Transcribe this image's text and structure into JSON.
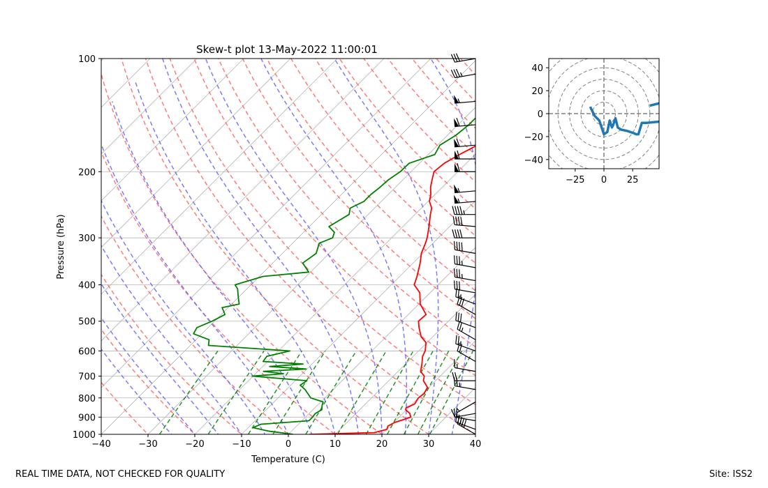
{
  "chart_data": [
    {
      "type": "skew-t",
      "title": "Skew-t plot 13-May-2022 11:00:01",
      "xlabel": "Temperature (C)",
      "ylabel": "Pressure (hPa)",
      "xlim": [
        -40,
        40
      ],
      "ylim": [
        1000,
        100
      ],
      "y_scale": "log",
      "x_ticks": [
        "−40",
        "−30",
        "−20",
        "−10",
        "0",
        "10",
        "20",
        "30",
        "40"
      ],
      "y_ticks": [
        "100",
        "200",
        "300",
        "400",
        "500",
        "600",
        "700",
        "800",
        "900",
        "1000"
      ],
      "grid": true,
      "colors": {
        "temperature": "#ff0000",
        "dewpoint": "#008000",
        "dry_adiabats": "#ff6464",
        "moist_adiabats": "#6464ff",
        "mixing_ratio": "#008000",
        "isotherms": "#b4b4b4",
        "barbs": "#000000"
      },
      "series": [
        {
          "name": "Temperature",
          "pressure_hPa": [
            1000,
            990,
            970,
            950,
            930,
            910,
            900,
            880,
            860,
            850,
            830,
            800,
            780,
            750,
            720,
            700,
            680,
            650,
            620,
            600,
            570,
            550,
            520,
            500,
            480,
            450,
            420,
            400,
            380,
            350,
            330,
            310,
            300,
            280,
            260,
            250,
            240,
            230,
            220,
            210,
            200,
            190,
            185,
            180,
            170,
            160,
            150,
            145,
            140,
            135,
            130,
            125,
            120,
            115,
            110,
            105,
            100
          ],
          "values": [
            4.5,
            18,
            20,
            19.5,
            20.2,
            21.8,
            22.5,
            21.5,
            19.8,
            19.5,
            20.5,
            20,
            20.3,
            19.7,
            17.4,
            16.6,
            14.8,
            13.5,
            12,
            11.4,
            9.8,
            7.5,
            5.1,
            3.6,
            3.8,
            0.3,
            -2.2,
            -5.1,
            -6.3,
            -8.5,
            -10.3,
            -11.6,
            -12.4,
            -14.4,
            -16.7,
            -17.8,
            -19.7,
            -20.9,
            -22.5,
            -23.8,
            -25.1,
            -24.7,
            -24,
            -23.3,
            -21.5,
            -20.9,
            -18.3,
            -17.8,
            -15,
            -15.5,
            -13.2,
            -11.2,
            -10.5,
            -7.2,
            -5.5,
            -2.8,
            -3.3
          ]
        },
        {
          "name": "Dewpoint",
          "pressure_hPa": [
            1000,
            980,
            960,
            940,
            920,
            900,
            880,
            860,
            840,
            820,
            800,
            780,
            760,
            740,
            720,
            700,
            690,
            680,
            670,
            660,
            650,
            640,
            620,
            600,
            580,
            560,
            540,
            520,
            500,
            480,
            460,
            450,
            430,
            410,
            400,
            380,
            370,
            350,
            330,
            310,
            300,
            290,
            280,
            260,
            250,
            240,
            230,
            220,
            210,
            200,
            190,
            180,
            170,
            160,
            150,
            140,
            130,
            120,
            110,
            100
          ],
          "values": [
            1,
            -5,
            -9,
            -8,
            1.5,
            1.5,
            1.3,
            1.9,
            1.1,
            0.5,
            -3,
            -4.5,
            -6,
            -8,
            -7.5,
            -20.2,
            -14,
            -18.8,
            -10.2,
            -18.5,
            -11.9,
            -21,
            -21.3,
            -17.5,
            -36.1,
            -37.2,
            -41.8,
            -42.4,
            -40.5,
            -39.2,
            -41.3,
            -38.4,
            -40.2,
            -42,
            -43.4,
            -39.2,
            -30.4,
            -33.6,
            -32.8,
            -34.3,
            -32.6,
            -33.4,
            -35.8,
            -34.1,
            -35.2,
            -33.7,
            -33.7,
            -33.3,
            -33.1,
            -32.3,
            -32.2,
            -28.6,
            -29.5,
            -28.2,
            -27.7,
            -27.7,
            -26.6,
            -25.6,
            -24.5,
            -23.1
          ]
        }
      ],
      "wind_barbs": [
        {
          "p": 1000,
          "speed_kt": 40,
          "dir_deg": 300
        },
        {
          "p": 970,
          "speed_kt": 25,
          "dir_deg": 290
        },
        {
          "p": 920,
          "speed_kt": 20,
          "dir_deg": 280
        },
        {
          "p": 880,
          "speed_kt": 10,
          "dir_deg": 260
        },
        {
          "p": 820,
          "speed_kt": 5,
          "dir_deg": 240
        },
        {
          "p": 760,
          "speed_kt": 25,
          "dir_deg": 280
        },
        {
          "p": 720,
          "speed_kt": 20,
          "dir_deg": 270
        },
        {
          "p": 680,
          "speed_kt": 15,
          "dir_deg": 280
        },
        {
          "p": 640,
          "speed_kt": 20,
          "dir_deg": 300
        },
        {
          "p": 600,
          "speed_kt": 25,
          "dir_deg": 290
        },
        {
          "p": 560,
          "speed_kt": 25,
          "dir_deg": 300
        },
        {
          "p": 520,
          "speed_kt": 30,
          "dir_deg": 290
        },
        {
          "p": 480,
          "speed_kt": 30,
          "dir_deg": 300
        },
        {
          "p": 450,
          "speed_kt": 25,
          "dir_deg": 290
        },
        {
          "p": 420,
          "speed_kt": 30,
          "dir_deg": 280
        },
        {
          "p": 390,
          "speed_kt": 35,
          "dir_deg": 280
        },
        {
          "p": 360,
          "speed_kt": 35,
          "dir_deg": 280
        },
        {
          "p": 330,
          "speed_kt": 40,
          "dir_deg": 280
        },
        {
          "p": 300,
          "speed_kt": 40,
          "dir_deg": 270
        },
        {
          "p": 280,
          "speed_kt": 40,
          "dir_deg": 275
        },
        {
          "p": 260,
          "speed_kt": 45,
          "dir_deg": 270
        },
        {
          "p": 240,
          "speed_kt": 55,
          "dir_deg": 265
        },
        {
          "p": 225,
          "speed_kt": 55,
          "dir_deg": 265
        },
        {
          "p": 200,
          "speed_kt": 60,
          "dir_deg": 270
        },
        {
          "p": 185,
          "speed_kt": 60,
          "dir_deg": 270
        },
        {
          "p": 170,
          "speed_kt": 60,
          "dir_deg": 265
        },
        {
          "p": 150,
          "speed_kt": 60,
          "dir_deg": 265
        },
        {
          "p": 130,
          "speed_kt": 55,
          "dir_deg": 265
        },
        {
          "p": 110,
          "speed_kt": 35,
          "dir_deg": 260
        },
        {
          "p": 100,
          "speed_kt": 30,
          "dir_deg": 260
        }
      ]
    },
    {
      "type": "hodograph",
      "xlim": [
        -48,
        48
      ],
      "ylim": [
        -48,
        48
      ],
      "x_ticks": [
        "−25",
        "0",
        "25"
      ],
      "y_ticks": [
        "40",
        "20",
        "0",
        "−20",
        "−40"
      ],
      "rings": [
        10,
        20,
        30,
        40,
        50,
        60
      ],
      "colors": {
        "line": "#1f77b4",
        "rings": "#808080"
      },
      "series": [
        {
          "u": [
            48,
            37,
            33,
            30,
            28,
            26,
            20,
            15,
            12,
            10,
            8,
            7,
            5,
            3,
            0,
            -2,
            -4,
            -6,
            -8,
            -10,
            -12
          ],
          "v": [
            -7,
            -8,
            -8,
            -18,
            -18,
            -17,
            -15,
            -14,
            -12,
            -4,
            -10,
            -12,
            -6,
            -16,
            -18,
            -12,
            -6,
            -4,
            -2,
            2,
            6
          ]
        },
        {
          "u": [
            40,
            48
          ],
          "v": [
            7,
            9
          ]
        }
      ]
    }
  ],
  "footer": {
    "left": "REAL TIME DATA, NOT CHECKED FOR QUALITY",
    "right": "Site: ISS2"
  }
}
